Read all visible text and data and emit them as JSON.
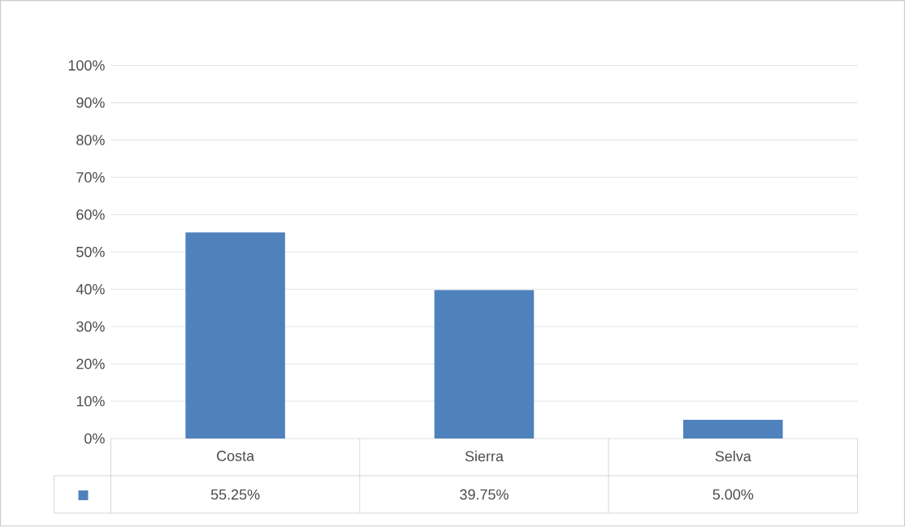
{
  "chart_data": {
    "type": "bar",
    "categories": [
      "Costa",
      "Sierra",
      "Selva"
    ],
    "values": [
      55.25,
      39.75,
      5.0
    ],
    "value_labels": [
      "55.25%",
      "39.75%",
      "5.00%"
    ],
    "color": "#4f81bd",
    "ylim": [
      0,
      100
    ],
    "yticks": [
      {
        "value": 0,
        "label": "0%"
      },
      {
        "value": 10,
        "label": "10%"
      },
      {
        "value": 20,
        "label": "20%"
      },
      {
        "value": 30,
        "label": "30%"
      },
      {
        "value": 40,
        "label": "40%"
      },
      {
        "value": 50,
        "label": "50%"
      },
      {
        "value": 60,
        "label": "60%"
      },
      {
        "value": 70,
        "label": "70%"
      },
      {
        "value": 80,
        "label": "80%"
      },
      {
        "value": 90,
        "label": "90%"
      },
      {
        "value": 100,
        "label": "100%"
      }
    ],
    "grid": "y"
  }
}
